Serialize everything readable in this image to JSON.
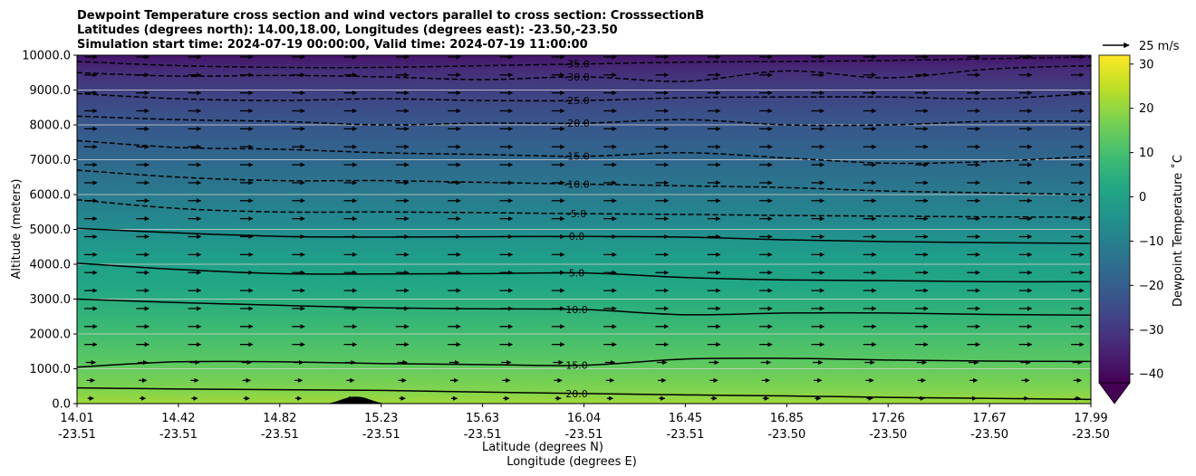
{
  "chart_data": {
    "type": "contour",
    "title_lines": [
      "Dewpoint Temperature cross section and wind vectors parallel to cross section: CrosssectionB",
      "Latitudes (degrees north): 14.00,18.00, Longitudes (degrees east): -23.50,-23.50",
      "Simulation start time: 2024-07-19 00:00:00, Valid time: 2024-07-19 11:00:00"
    ],
    "xlabel": "Latitude (degrees N)",
    "xlabel2": "Longitude (degrees E)",
    "ylabel": "Altitude (meters)",
    "ylim": [
      0,
      10000
    ],
    "y_ticks": [
      {
        "value": 0,
        "label": "0.0"
      },
      {
        "value": 1000,
        "label": "1000.0"
      },
      {
        "value": 2000,
        "label": "2000.0"
      },
      {
        "value": 3000,
        "label": "3000.0"
      },
      {
        "value": 4000,
        "label": "4000.0"
      },
      {
        "value": 5000,
        "label": "5000.0"
      },
      {
        "value": 6000,
        "label": "6000.0"
      },
      {
        "value": 7000,
        "label": "7000.0"
      },
      {
        "value": 8000,
        "label": "8000.0"
      },
      {
        "value": 9000,
        "label": "9000.0"
      },
      {
        "value": 10000,
        "label": "10000.0"
      }
    ],
    "x_ticks": [
      {
        "lat": "14.01",
        "lon": "-23.51"
      },
      {
        "lat": "14.42",
        "lon": "-23.51"
      },
      {
        "lat": "14.82",
        "lon": "-23.51"
      },
      {
        "lat": "15.23",
        "lon": "-23.51"
      },
      {
        "lat": "15.63",
        "lon": "-23.51"
      },
      {
        "lat": "16.04",
        "lon": "-23.51"
      },
      {
        "lat": "16.45",
        "lon": "-23.51"
      },
      {
        "lat": "16.85",
        "lon": "-23.50"
      },
      {
        "lat": "17.26",
        "lon": "-23.50"
      },
      {
        "lat": "17.67",
        "lon": "-23.50"
      },
      {
        "lat": "17.99",
        "lon": "-23.50"
      }
    ],
    "grid_y": true,
    "colorbar": {
      "label": "Dewpoint Temperature ˚C",
      "min": -42,
      "max": 32,
      "ticks": [
        {
          "value": -40,
          "label": "−40"
        },
        {
          "value": -30,
          "label": "−30"
        },
        {
          "value": -20,
          "label": "−20"
        },
        {
          "value": -10,
          "label": "−10"
        },
        {
          "value": 0,
          "label": "0"
        },
        {
          "value": 10,
          "label": "10"
        },
        {
          "value": 20,
          "label": "20"
        },
        {
          "value": 30,
          "label": "30"
        }
      ],
      "extend": "min",
      "colormap": "viridis"
    },
    "quiver_key": {
      "label": "25 m/s"
    },
    "contours": [
      {
        "level": 20,
        "label": "20.0",
        "dashed": false,
        "altitudes": [
          450,
          420,
          400,
          380,
          330,
          290,
          250,
          220,
          180,
          150,
          120
        ]
      },
      {
        "level": 15,
        "label": "15.0",
        "dashed": false,
        "altitudes": [
          1050,
          1200,
          1200,
          1150,
          1120,
          1100,
          1280,
          1300,
          1250,
          1220,
          1210
        ]
      },
      {
        "level": 10,
        "label": "10.0",
        "dashed": false,
        "altitudes": [
          3000,
          2900,
          2820,
          2750,
          2720,
          2700,
          2550,
          2600,
          2600,
          2560,
          2540
        ]
      },
      {
        "level": 5,
        "label": "5.0",
        "dashed": false,
        "altitudes": [
          4030,
          3850,
          3730,
          3720,
          3730,
          3750,
          3620,
          3550,
          3530,
          3500,
          3500
        ]
      },
      {
        "level": 0,
        "label": "0.0",
        "dashed": false,
        "altitudes": [
          5030,
          4900,
          4800,
          4780,
          4790,
          4800,
          4780,
          4700,
          4650,
          4620,
          4600
        ]
      },
      {
        "level": -5,
        "label": "-5.0",
        "dashed": true,
        "altitudes": [
          5850,
          5600,
          5500,
          5500,
          5480,
          5450,
          5430,
          5400,
          5380,
          5360,
          5350
        ]
      },
      {
        "level": -10,
        "label": "-10.0",
        "dashed": true,
        "altitudes": [
          6700,
          6500,
          6400,
          6400,
          6350,
          6300,
          6250,
          6200,
          6100,
          6050,
          6000
        ]
      },
      {
        "level": -15,
        "label": "-15.0",
        "dashed": true,
        "altitudes": [
          7550,
          7350,
          7300,
          7200,
          7150,
          7100,
          7200,
          7050,
          6900,
          6950,
          7100
        ]
      },
      {
        "level": -20,
        "label": "-20.0",
        "dashed": true,
        "altitudes": [
          8250,
          8150,
          8100,
          8000,
          8050,
          8050,
          8150,
          8000,
          8000,
          8100,
          8100
        ]
      },
      {
        "level": -25,
        "label": "-25.0",
        "dashed": true,
        "altitudes": [
          8900,
          8750,
          8700,
          8750,
          8700,
          8700,
          8780,
          8800,
          8800,
          8750,
          8900
        ]
      },
      {
        "level": -30,
        "label": "-30.0",
        "dashed": true,
        "altitudes": [
          9500,
          9400,
          9420,
          9380,
          9300,
          9380,
          9250,
          9550,
          9350,
          9600,
          9700
        ]
      },
      {
        "level": -35,
        "label": "-35.0",
        "dashed": true,
        "altitudes": [
          9820,
          9700,
          9650,
          9650,
          9700,
          9750,
          9800,
          9820,
          9850,
          9900,
          9950
        ]
      }
    ],
    "terrain_peak": {
      "lat_index": 6.9,
      "altitude": 200
    }
  }
}
